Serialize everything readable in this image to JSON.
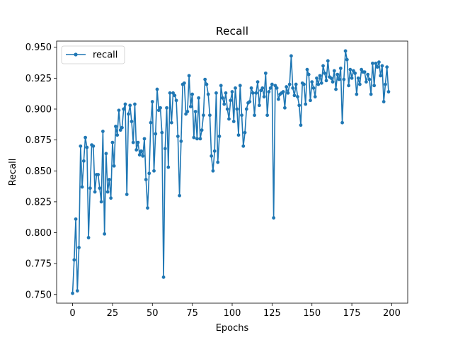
{
  "chart_data": {
    "type": "line",
    "title": "Recall",
    "xlabel": "Epochs",
    "ylabel": "Recall",
    "xlim": [
      -10,
      210
    ],
    "ylim": [
      0.743,
      0.955
    ],
    "xticks": [
      0,
      25,
      50,
      75,
      100,
      125,
      150,
      175,
      200
    ],
    "yticks": [
      0.75,
      0.775,
      0.8,
      0.825,
      0.85,
      0.875,
      0.9,
      0.925,
      0.95
    ],
    "ytick_labels": [
      "0.750",
      "0.775",
      "0.800",
      "0.825",
      "0.850",
      "0.875",
      "0.900",
      "0.925",
      "0.950"
    ],
    "grid": false,
    "legend_position": "top-left",
    "series": [
      {
        "name": "recall",
        "color": "#1f77b4",
        "marker": "circle",
        "values": [
          0.751,
          0.778,
          0.811,
          0.753,
          0.788,
          0.87,
          0.837,
          0.858,
          0.877,
          0.869,
          0.796,
          0.836,
          0.871,
          0.87,
          0.833,
          0.847,
          0.847,
          0.836,
          0.825,
          0.882,
          0.799,
          0.864,
          0.833,
          0.843,
          0.828,
          0.873,
          0.854,
          0.886,
          0.879,
          0.899,
          0.883,
          0.885,
          0.9,
          0.904,
          0.831,
          0.896,
          0.903,
          0.89,
          0.873,
          0.904,
          0.867,
          0.873,
          0.863,
          0.866,
          0.862,
          0.876,
          0.843,
          0.82,
          0.848,
          0.889,
          0.906,
          0.85,
          0.88,
          0.916,
          0.899,
          0.901,
          0.881,
          0.764,
          0.868,
          0.901,
          0.853,
          0.913,
          0.889,
          0.913,
          0.911,
          0.907,
          0.878,
          0.83,
          0.874,
          0.92,
          0.921,
          0.896,
          0.898,
          0.927,
          0.902,
          0.912,
          0.877,
          0.898,
          0.876,
          0.909,
          0.876,
          0.883,
          0.895,
          0.924,
          0.92,
          0.912,
          0.895,
          0.862,
          0.85,
          0.866,
          0.913,
          0.857,
          0.878,
          0.919,
          0.909,
          0.904,
          0.913,
          0.9,
          0.892,
          0.907,
          0.914,
          0.89,
          0.917,
          0.9,
          0.879,
          0.919,
          0.895,
          0.87,
          0.881,
          0.9,
          0.905,
          0.906,
          0.917,
          0.913,
          0.895,
          0.913,
          0.922,
          0.903,
          0.915,
          0.917,
          0.91,
          0.929,
          0.895,
          0.914,
          0.917,
          0.92,
          0.812,
          0.919,
          0.917,
          0.908,
          0.912,
          0.913,
          0.914,
          0.901,
          0.918,
          0.913,
          0.92,
          0.943,
          0.917,
          0.911,
          0.92,
          0.91,
          0.903,
          0.887,
          0.921,
          0.92,
          0.904,
          0.932,
          0.928,
          0.907,
          0.922,
          0.917,
          0.91,
          0.925,
          0.92,
          0.927,
          0.921,
          0.935,
          0.929,
          0.923,
          0.939,
          0.926,
          0.925,
          0.922,
          0.931,
          0.916,
          0.928,
          0.924,
          0.933,
          0.889,
          0.924,
          0.947,
          0.94,
          0.919,
          0.932,
          0.925,
          0.931,
          0.929,
          0.912,
          0.925,
          0.92,
          0.932,
          0.93,
          0.93,
          0.922,
          0.928,
          0.924,
          0.912,
          0.937,
          0.919,
          0.937,
          0.934,
          0.938,
          0.927,
          0.935,
          0.906,
          0.92,
          0.934,
          0.914
        ]
      }
    ]
  }
}
